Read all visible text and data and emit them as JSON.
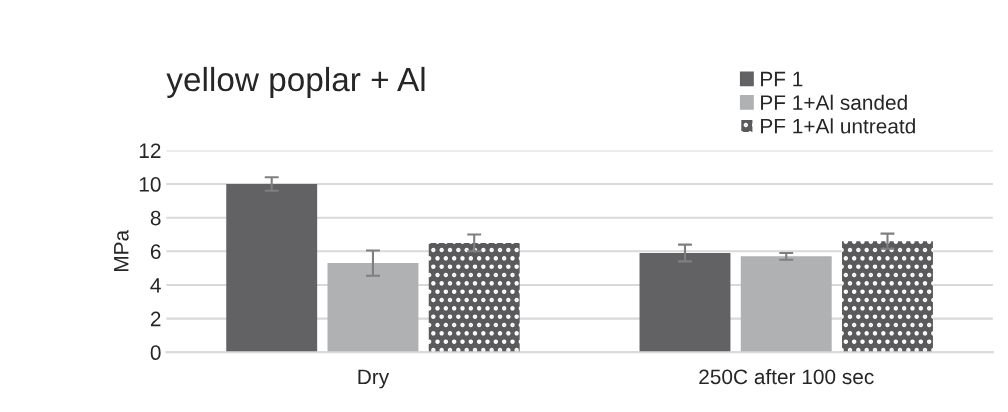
{
  "chart_data": {
    "type": "bar",
    "title": "yellow poplar + Al",
    "ylabel": "MPa",
    "categories": [
      "Dry",
      "250C after 100 sec"
    ],
    "series": [
      {
        "name": "PF 1",
        "color": "#626264",
        "values": [
          10.0,
          5.9
        ],
        "errors": [
          0.4,
          0.5
        ]
      },
      {
        "name": "PF 1+Al sanded",
        "color": "#b0b1b3",
        "values": [
          5.3,
          5.7
        ],
        "errors": [
          0.75,
          0.2
        ]
      },
      {
        "name": "PF 1+Al untreatd",
        "color": "#5a5a5c",
        "values": [
          6.5,
          6.6
        ],
        "errors": [
          0.5,
          0.45
        ]
      }
    ],
    "ylim": [
      0,
      12
    ],
    "yticks": [
      0,
      2,
      4,
      6,
      8,
      10,
      12
    ],
    "grid": "y",
    "legend": "top right"
  }
}
